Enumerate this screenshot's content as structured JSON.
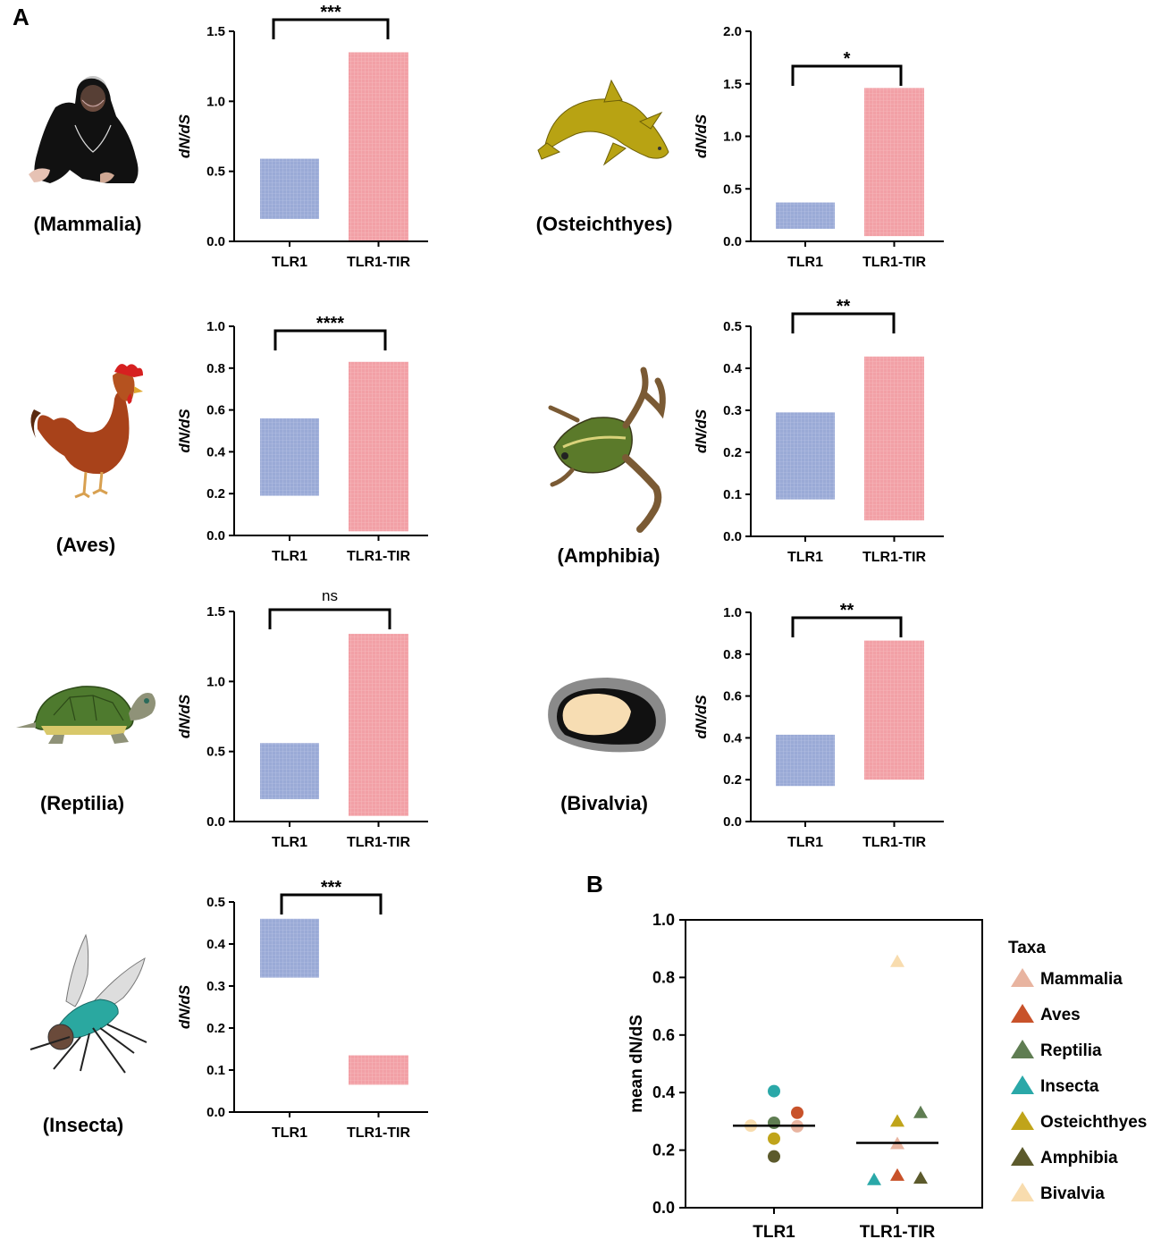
{
  "panel_labels": {
    "a": "A",
    "b": "B"
  },
  "chart_data": [
    {
      "id": "mammalia",
      "type": "floating_bar",
      "taxon": "(Mammalia)",
      "ylabel": "dN/dS",
      "categories": [
        "TLR1",
        "TLR1-TIR"
      ],
      "ranges": [
        [
          0.16,
          0.59
        ],
        [
          0.0,
          1.35
        ]
      ],
      "ylim": [
        0,
        1.5
      ],
      "ticks": [
        "0.0",
        "0.5",
        "1.0",
        "1.5"
      ],
      "significance": "***"
    },
    {
      "id": "osteichthyes",
      "type": "floating_bar",
      "taxon": "(Osteichthyes)",
      "ylabel": "dN/dS",
      "categories": [
        "TLR1",
        "TLR1-TIR"
      ],
      "ranges": [
        [
          0.12,
          0.37
        ],
        [
          0.05,
          1.46
        ]
      ],
      "ylim": [
        0,
        2.0
      ],
      "ticks": [
        "0.0",
        "0.5",
        "1.0",
        "1.5",
        "2.0"
      ],
      "significance": "*"
    },
    {
      "id": "aves",
      "type": "floating_bar",
      "taxon": "(Aves)",
      "ylabel": "dN/dS",
      "categories": [
        "TLR1",
        "TLR1-TIR"
      ],
      "ranges": [
        [
          0.19,
          0.56
        ],
        [
          0.02,
          0.83
        ]
      ],
      "ylim": [
        0,
        1.0
      ],
      "ticks": [
        "0.0",
        "0.2",
        "0.4",
        "0.6",
        "0.8",
        "1.0"
      ],
      "significance": "****"
    },
    {
      "id": "amphibia",
      "type": "floating_bar",
      "taxon": "(Amphibia)",
      "ylabel": "dN/dS",
      "categories": [
        "TLR1",
        "TLR1-TIR"
      ],
      "ranges": [
        [
          0.088,
          0.295
        ],
        [
          0.038,
          0.428
        ]
      ],
      "ylim": [
        0,
        0.5
      ],
      "ticks": [
        "0.0",
        "0.1",
        "0.2",
        "0.3",
        "0.4",
        "0.5"
      ],
      "significance": "**"
    },
    {
      "id": "reptilia",
      "type": "floating_bar",
      "taxon": "(Reptilia)",
      "ylabel": "dN/dS",
      "categories": [
        "TLR1",
        "TLR1-TIR"
      ],
      "ranges": [
        [
          0.16,
          0.56
        ],
        [
          0.04,
          1.34
        ]
      ],
      "ylim": [
        0,
        1.5
      ],
      "ticks": [
        "0.0",
        "0.5",
        "1.0",
        "1.5"
      ],
      "significance": "ns"
    },
    {
      "id": "bivalvia",
      "type": "floating_bar",
      "taxon": "(Bivalvia)",
      "ylabel": "dN/dS",
      "categories": [
        "TLR1",
        "TLR1-TIR"
      ],
      "ranges": [
        [
          0.17,
          0.415
        ],
        [
          0.2,
          0.865
        ]
      ],
      "ylim": [
        0,
        1.0
      ],
      "ticks": [
        "0.0",
        "0.2",
        "0.4",
        "0.6",
        "0.8",
        "1.0"
      ],
      "significance": "**"
    },
    {
      "id": "insecta",
      "type": "floating_bar",
      "taxon": "(Insecta)",
      "ylabel": "dN/dS",
      "categories": [
        "TLR1",
        "TLR1-TIR"
      ],
      "ranges": [
        [
          0.32,
          0.46
        ],
        [
          0.065,
          0.135
        ]
      ],
      "ylim": [
        0,
        0.5
      ],
      "ticks": [
        "0.0",
        "0.1",
        "0.2",
        "0.3",
        "0.4",
        "0.5"
      ],
      "significance": "***"
    },
    {
      "id": "panel_b",
      "type": "scatter",
      "ylabel": "mean dN/dS",
      "categories": [
        "TLR1",
        "TLR1-TIR"
      ],
      "ylim": [
        0,
        1.0
      ],
      "ticks": [
        "0.0",
        "0.2",
        "0.4",
        "0.6",
        "0.8",
        "1.0"
      ],
      "legend_title": "Taxa",
      "taxa": [
        {
          "name": "Mammalia",
          "color": "#e8b4a0"
        },
        {
          "name": "Aves",
          "color": "#c8522a"
        },
        {
          "name": "Reptilia",
          "color": "#5f7d52"
        },
        {
          "name": "Insecta",
          "color": "#2aa8a8"
        },
        {
          "name": "Osteichthyes",
          "color": "#c0a41a"
        },
        {
          "name": "Amphibia",
          "color": "#5c5a2c"
        },
        {
          "name": "Bivalvia",
          "color": "#f8dcae"
        }
      ],
      "tlr1_points": [
        {
          "taxon": "Bivalvia",
          "value": 0.285,
          "offset": -2
        },
        {
          "taxon": "Insecta",
          "value": 0.405,
          "offset": 0
        },
        {
          "taxon": "Reptilia",
          "value": 0.295,
          "offset": 0
        },
        {
          "taxon": "Osteichthyes",
          "value": 0.24,
          "offset": 0
        },
        {
          "taxon": "Amphibia",
          "value": 0.178,
          "offset": 0
        },
        {
          "taxon": "Aves",
          "value": 0.33,
          "offset": 2
        },
        {
          "taxon": "Mammalia",
          "value": 0.283,
          "offset": 2
        }
      ],
      "tlr1_mean": 0.285,
      "tir_points": [
        {
          "taxon": "Bivalvia",
          "value": 0.855,
          "offset": 0
        },
        {
          "taxon": "Reptilia",
          "value": 0.33,
          "offset": 2
        },
        {
          "taxon": "Osteichthyes",
          "value": 0.3,
          "offset": 0
        },
        {
          "taxon": "Mammalia",
          "value": 0.222,
          "offset": 0
        },
        {
          "taxon": "Aves",
          "value": 0.112,
          "offset": 0
        },
        {
          "taxon": "Insecta",
          "value": 0.097,
          "offset": -2
        },
        {
          "taxon": "Amphibia",
          "value": 0.102,
          "offset": 2
        }
      ],
      "tir_mean": 0.225
    }
  ],
  "colors": {
    "tlr1_bar": "#9aaad6",
    "tir_bar": "#f2a0a6",
    "axis": "#000000"
  },
  "illustrations": {
    "mammalia": "chimpanzee-icon",
    "osteichthyes": "fish-icon",
    "aves": "rooster-icon",
    "amphibia": "frog-icon",
    "reptilia": "turtle-icon",
    "bivalvia": "bivalve-icon",
    "insecta": "fly-icon"
  }
}
